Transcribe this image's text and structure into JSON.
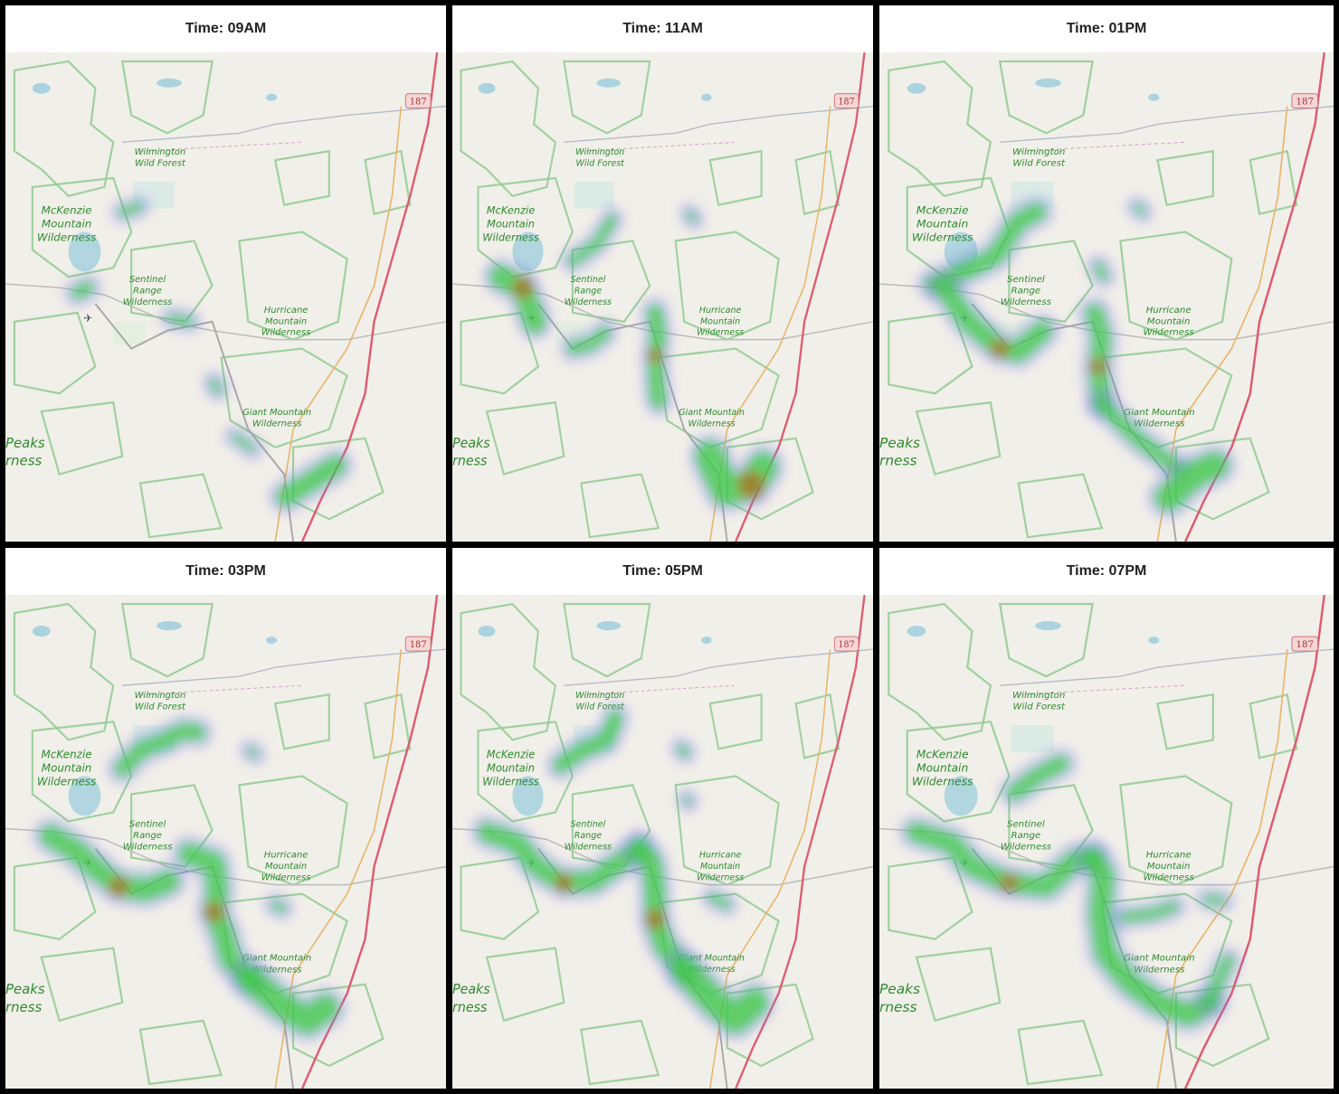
{
  "panels": [
    {
      "title": "Time: 09AM",
      "intensity": "low"
    },
    {
      "title": "Time: 11AM",
      "intensity": "medium"
    },
    {
      "title": "Time: 01PM",
      "intensity": "high"
    },
    {
      "title": "Time: 03PM",
      "intensity": "high"
    },
    {
      "title": "Time: 05PM",
      "intensity": "high"
    },
    {
      "title": "Time: 07PM",
      "intensity": "high"
    }
  ],
  "map_labels": {
    "wilmington": [
      "Wilmington",
      "Wild Forest"
    ],
    "mckenzie": [
      "McKenzie",
      "Mountain",
      "Wilderness"
    ],
    "sentinel": [
      "Sentinel",
      "Range",
      "Wilderness"
    ],
    "hurricane": [
      "Hurricane",
      "Mountain",
      "Wilderness"
    ],
    "giant": [
      "Giant Mountain",
      "Wilderness"
    ],
    "peaks": [
      "Peaks",
      "rness"
    ],
    "route_shield": "187"
  },
  "colors": {
    "heat_low": "#7b68ee",
    "heat_mid": "#3cd23c",
    "heat_high": "#b5651d",
    "land": "#f1efe9",
    "boundary": "#8fcb8f",
    "highway": "#e05a6e",
    "road_minor": "#e8b56a",
    "water": "#aad3df"
  }
}
